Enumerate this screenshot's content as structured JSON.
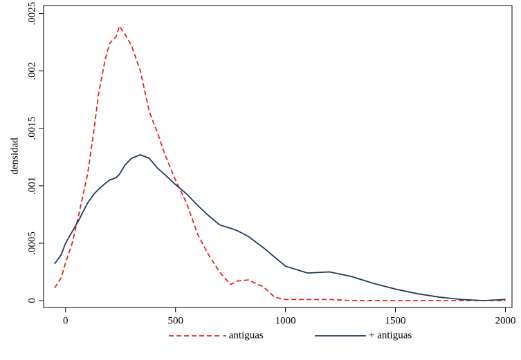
{
  "chart_data": {
    "type": "line",
    "ylabel": "densidad",
    "x": [
      -50,
      -20,
      0,
      30,
      60,
      100,
      130,
      150,
      180,
      200,
      230,
      245,
      270,
      300,
      340,
      380,
      420,
      450,
      500,
      550,
      600,
      650,
      700,
      750,
      780,
      830,
      900,
      950,
      1000,
      1100,
      1200,
      1300,
      1400,
      1500,
      1600,
      1700,
      1800,
      1900,
      2000
    ],
    "series": [
      {
        "name": "- antiguas",
        "color": "#e8201c",
        "dash": true,
        "values": [
          0.00011,
          0.0002,
          0.00033,
          0.0005,
          0.00075,
          0.0011,
          0.0015,
          0.0018,
          0.0021,
          0.00224,
          0.0023,
          0.00239,
          0.00232,
          0.00222,
          0.002,
          0.00165,
          0.00145,
          0.00128,
          0.00105,
          0.00085,
          0.00058,
          0.0004,
          0.00025,
          0.00014,
          0.00017,
          0.00018,
          0.00012,
          3e-05,
          1e-05,
          1e-05,
          1e-05,
          0,
          0,
          0,
          0,
          0,
          0,
          0,
          0
        ]
      },
      {
        "name": "+ antiguas",
        "color": "#1f3864",
        "dash": false,
        "values": [
          0.00032,
          0.0004,
          0.0005,
          0.0006,
          0.0007,
          0.00085,
          0.00093,
          0.00097,
          0.00102,
          0.00105,
          0.00107,
          0.0011,
          0.00118,
          0.00124,
          0.00127,
          0.00124,
          0.00115,
          0.0011,
          0.00101,
          0.00093,
          0.00083,
          0.00074,
          0.00066,
          0.00063,
          0.00061,
          0.00056,
          0.00046,
          0.00038,
          0.0003,
          0.00024,
          0.00025,
          0.00021,
          0.00015,
          0.0001,
          6e-05,
          3e-05,
          1e-05,
          0,
          1e-05
        ]
      }
    ],
    "xlim": [
      -100,
      2030
    ],
    "xticks": [
      0,
      500,
      1000,
      1500,
      2000
    ],
    "ylim": [
      -6e-05,
      0.00257
    ],
    "yticks": [
      0,
      {
        "value": 0.0005,
        "label": ".0005"
      },
      {
        "value": 0.001,
        "label": ".001"
      },
      {
        "value": 0.0015,
        "label": ".0015"
      },
      {
        "value": 0.002,
        "label": ".002"
      },
      {
        "value": 0.0025,
        "label": ".0025"
      }
    ],
    "legend": "bottom"
  }
}
